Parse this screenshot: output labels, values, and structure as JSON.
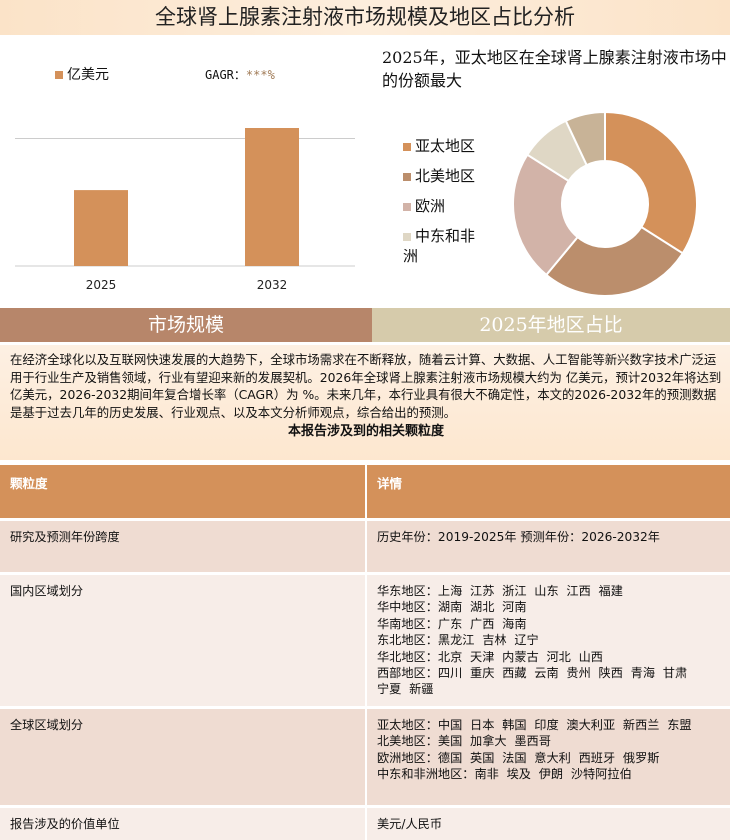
{
  "title": "全球肾上腺素注射液市场规模及地区占比分析",
  "bar_chart": {
    "legend": "亿美元",
    "gagr_label": "GAGR：",
    "gagr_value": "***%",
    "color": "#d4915a"
  },
  "pie": {
    "title": "2025年，亚太地区在全球肾上腺素注射液市场中的份额最大"
  },
  "chart_data": [
    {
      "type": "bar",
      "categories": [
        "2025",
        "2032"
      ],
      "values": [
        55,
        100
      ],
      "series": [
        {
          "name": "亿美元",
          "values": [
            55,
            100
          ]
        }
      ],
      "title": "",
      "xlabel": "",
      "ylabel": "",
      "grid": false,
      "legend": "top-left"
    },
    {
      "type": "pie",
      "donut": true,
      "labels": [
        "亚太地区",
        "北美地区",
        "欧洲",
        "中东和非洲",
        ""
      ],
      "values": [
        34,
        27,
        23,
        9,
        7
      ],
      "colors": [
        "#d4915a",
        "#bb8e6c",
        "#d2b3a8",
        "#dfd7c5",
        "#c8b397"
      ],
      "legend": "left"
    }
  ],
  "sections": {
    "left": "市场规模",
    "right": "2025年地区占比"
  },
  "intro": {
    "text": "在经济全球化以及互联网快速发展的大趋势下，全球市场需求在不断释放，随着云计算、大数据、人工智能等新兴数字技术广泛运用于行业生产及销售领域，行业有望迎来新的发展契机。2026年全球肾上腺素注射液市场规模大约为 亿美元，预计2032年将达到 亿美元，2026-2032期间年复合增长率（CAGR）为 %。未来几年，本行业具有很大不确定性，本文的2026-2032年的预测数据是基于过去几年的历史发展、行业观点、以及本文分析师观点，综合给出的预测。",
    "table_title": "本报告涉及到的相关颗粒度"
  },
  "table": {
    "headers": [
      "颗粒度",
      "详情"
    ],
    "rows": [
      {
        "label": "研究及预测年份跨度",
        "lines": [
          "历史年份：2019-2025年 预测年份：2026-2032年"
        ]
      },
      {
        "label": "国内区域划分",
        "lines": [
          "华东地区：上海  江苏  浙江  山东  江西  福建",
          "华中地区：湖南  湖北  河南",
          "华南地区：广东  广西  海南",
          "东北地区：黑龙江  吉林  辽宁",
          "华北地区：北京  天津  内蒙古  河北  山西",
          "西部地区：四川  重庆  西藏  云南  贵州  陕西  青海  甘肃",
          "宁夏  新疆"
        ]
      },
      {
        "label": "全球区域划分",
        "lines": [
          "亚太地区：中国  日本  韩国  印度  澳大利亚  新西兰  东盟",
          "北美地区：美国  加拿大  墨西哥",
          "欧洲地区：德国  英国  法国  意大利  西班牙  俄罗斯",
          "中东和非洲地区：南非  埃及  伊朗  沙特阿拉伯"
        ]
      },
      {
        "label": "报告涉及的价值单位",
        "lines": [
          "美元/人民币"
        ]
      }
    ]
  }
}
